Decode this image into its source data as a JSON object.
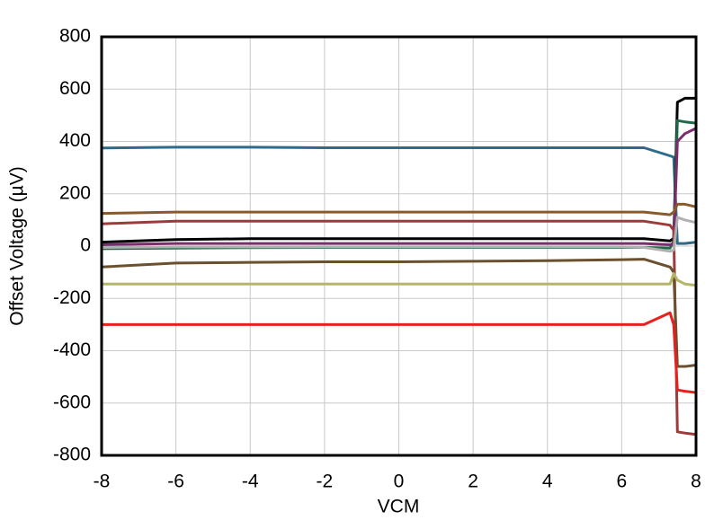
{
  "chart_data": {
    "type": "line",
    "xlabel": "VCM",
    "ylabel": "Offset Voltage (µV)",
    "x": [
      -8,
      -6,
      -4,
      -2,
      0,
      2,
      4,
      6,
      6.6,
      7.3,
      7.4,
      7.5,
      7.7,
      8
    ],
    "series": [
      {
        "color": "#2e6b8a",
        "values": [
          375,
          378,
          378,
          376,
          376,
          376,
          376,
          376,
          376,
          345,
          340,
          10,
          10,
          15
        ]
      },
      {
        "color": "#000000",
        "values": [
          15,
          25,
          28,
          28,
          28,
          28,
          28,
          28,
          28,
          20,
          30,
          550,
          565,
          565
        ]
      },
      {
        "color": "#1e6b4a",
        "values": [
          -10,
          -8,
          -6,
          -5,
          -5,
          -5,
          -5,
          -5,
          -5,
          -8,
          20,
          480,
          475,
          470
        ]
      },
      {
        "color": "#7b2d6e",
        "values": [
          5,
          10,
          10,
          10,
          10,
          10,
          10,
          10,
          10,
          5,
          10,
          400,
          430,
          450
        ]
      },
      {
        "color": "#8b5a2b",
        "values": [
          125,
          130,
          130,
          130,
          130,
          130,
          130,
          130,
          130,
          120,
          130,
          160,
          160,
          150
        ]
      },
      {
        "color": "#9b3b3b",
        "values": [
          85,
          95,
          95,
          95,
          95,
          95,
          95,
          95,
          95,
          80,
          60,
          -710,
          -715,
          -720
        ]
      },
      {
        "color": "#b0b0b0",
        "values": [
          -5,
          -3,
          -3,
          -3,
          -3,
          -3,
          -3,
          -3,
          -5,
          -20,
          -15,
          110,
          100,
          90
        ]
      },
      {
        "color": "#6b5030",
        "values": [
          -80,
          -65,
          -62,
          -60,
          -60,
          -58,
          -56,
          -52,
          -50,
          -80,
          -100,
          -460,
          -460,
          -455
        ]
      },
      {
        "color": "#b5b56a",
        "values": [
          -145,
          -145,
          -145,
          -145,
          -145,
          -145,
          -145,
          -145,
          -145,
          -145,
          -105,
          -130,
          -145,
          -150
        ]
      },
      {
        "color": "#e8201c",
        "values": [
          -300,
          -300,
          -300,
          -300,
          -300,
          -300,
          -300,
          -300,
          -300,
          -255,
          -300,
          -550,
          -555,
          -560
        ]
      }
    ],
    "xlim": [
      -8,
      8
    ],
    "xticks": [
      -8,
      -6,
      -4,
      -2,
      0,
      2,
      4,
      6,
      8
    ],
    "ylim": [
      -800,
      800
    ],
    "yticks": [
      -800,
      -600,
      -400,
      -200,
      0,
      200,
      400,
      600,
      800
    ],
    "grid": true
  }
}
